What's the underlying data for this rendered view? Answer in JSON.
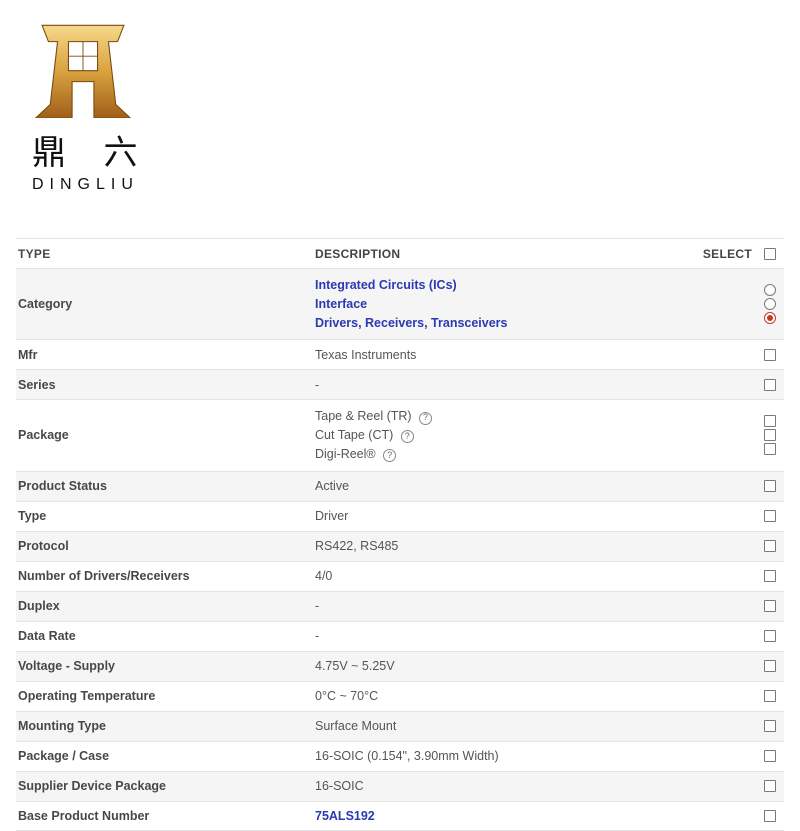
{
  "logo": {
    "cn": "鼎 六",
    "en": "DINGLIU"
  },
  "header": {
    "type": "TYPE",
    "desc": "DESCRIPTION",
    "select": "SELECT"
  },
  "rows": [
    {
      "type": "Category",
      "alt": true,
      "desc_links": [
        "Integrated Circuits (ICs)",
        "Interface",
        "Drivers, Receivers, Transceivers"
      ],
      "ctrl": "radio3"
    },
    {
      "type": "Mfr",
      "alt": false,
      "desc": "Texas Instruments",
      "ctrl": "chk"
    },
    {
      "type": "Series",
      "alt": true,
      "desc": "-",
      "ctrl": "chk"
    },
    {
      "type": "Package",
      "alt": false,
      "desc_help": [
        "Tape & Reel (TR)",
        "Cut Tape (CT)",
        "Digi-Reel®"
      ],
      "ctrl": "chk3"
    },
    {
      "type": "Product Status",
      "alt": true,
      "desc": "Active",
      "ctrl": "chk"
    },
    {
      "type": "Type",
      "alt": false,
      "desc": "Driver",
      "ctrl": "chk"
    },
    {
      "type": "Protocol",
      "alt": true,
      "desc": "RS422, RS485",
      "ctrl": "chk"
    },
    {
      "type": "Number of Drivers/Receivers",
      "alt": false,
      "desc": "4/0",
      "ctrl": "chk"
    },
    {
      "type": "Duplex",
      "alt": true,
      "desc": "-",
      "ctrl": "chk"
    },
    {
      "type": "Data Rate",
      "alt": false,
      "desc": "-",
      "ctrl": "chk"
    },
    {
      "type": "Voltage - Supply",
      "alt": true,
      "desc": "4.75V ~ 5.25V",
      "ctrl": "chk"
    },
    {
      "type": "Operating Temperature",
      "alt": false,
      "desc": "0°C ~ 70°C",
      "ctrl": "chk"
    },
    {
      "type": "Mounting Type",
      "alt": true,
      "desc": "Surface Mount",
      "ctrl": "chk"
    },
    {
      "type": "Package / Case",
      "alt": false,
      "desc": "16-SOIC (0.154\", 3.90mm Width)",
      "ctrl": "chk"
    },
    {
      "type": "Supplier Device Package",
      "alt": true,
      "desc": "16-SOIC",
      "ctrl": "chk"
    },
    {
      "type": "Base Product Number",
      "alt": false,
      "desc_link": "75ALS192",
      "ctrl": "chk"
    }
  ]
}
